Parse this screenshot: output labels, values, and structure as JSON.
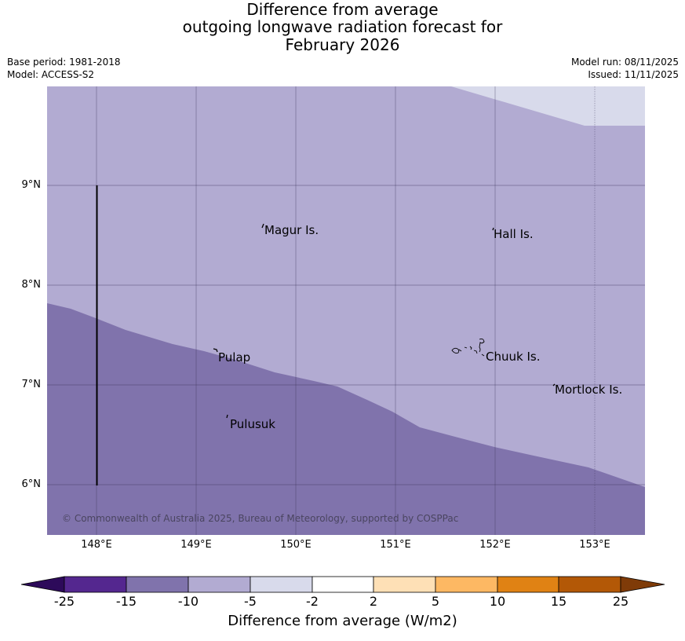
{
  "title": {
    "line1": "Difference from average",
    "line2": "outgoing longwave radiation forecast for",
    "line3": "February 2026"
  },
  "meta": {
    "base_period": "Base period: 1981-2018",
    "model": "Model: ACCESS-S2",
    "model_run": "Model run: 08/11/2025",
    "issued": "Issued: 11/11/2025"
  },
  "axes": {
    "lat_labels": [
      "9°N",
      "8°N",
      "7°N",
      "6°N"
    ],
    "lon_labels": [
      "148°E",
      "149°E",
      "150°E",
      "151°E",
      "152°E",
      "153°E"
    ]
  },
  "places": {
    "magur": "Magur Is.",
    "hall": "Hall Is.",
    "pulap": "Pulap",
    "chuuk": "Chuuk Is.",
    "mortlock": "Mortlock Is.",
    "pulusuk": "Pulusuk"
  },
  "copyright": "© Commonwealth of Australia 2025, Bureau of Meteorology, supported by COSPPac",
  "legend": {
    "title": "Difference from average (W/m2)",
    "labels": [
      "-25",
      "-15",
      "-10",
      "-5",
      "-2",
      "2",
      "5",
      "10",
      "15",
      "25"
    ],
    "colors": [
      "#2d0a5a",
      "#54278f",
      "#8073ac",
      "#b2abd2",
      "#d8daeb",
      "#ffffff",
      "#fee0b6",
      "#fdb863",
      "#e08214",
      "#b35806",
      "#7f3b08"
    ]
  },
  "map_colors": {
    "light": "#b2abd2",
    "medium": "#8073ac",
    "pale": "#d8daeb"
  }
}
